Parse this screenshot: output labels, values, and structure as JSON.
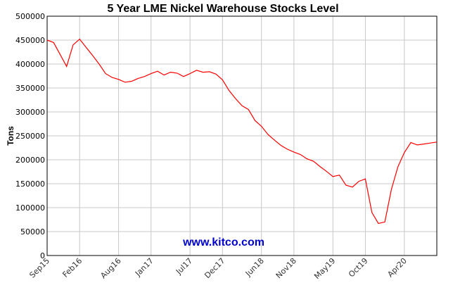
{
  "chart_data": {
    "type": "line",
    "title": "5 Year LME Nickel Warehouse Stocks Level",
    "ylabel": "Tons",
    "xlabel": "",
    "ylim": [
      0,
      500000
    ],
    "y_ticks": [
      "0",
      "50000",
      "100000",
      "150000",
      "200000",
      "250000",
      "300000",
      "350000",
      "400000",
      "450000",
      "500000"
    ],
    "x_ticks": [
      "Sep15",
      "Feb16",
      "Aug16",
      "Jan17",
      "Jul17",
      "Dec17",
      "Jun18",
      "Nov18",
      "May19",
      "Oct19",
      "Apr20"
    ],
    "x_tick_months": [
      "2015-09",
      "2016-02",
      "2016-08",
      "2017-01",
      "2017-07",
      "2017-12",
      "2018-06",
      "2018-11",
      "2019-05",
      "2019-10",
      "2020-04"
    ],
    "xlim": [
      "2015-09",
      "2020-09"
    ],
    "grid": true,
    "line_color": "#ff0000",
    "series": [
      {
        "x": [
          "2015-09",
          "2015-10",
          "2015-11",
          "2015-12",
          "2016-01",
          "2016-02",
          "2016-03",
          "2016-04",
          "2016-05",
          "2016-06",
          "2016-07",
          "2016-08",
          "2016-09",
          "2016-10",
          "2016-11",
          "2016-12",
          "2017-01",
          "2017-02",
          "2017-03",
          "2017-04",
          "2017-05",
          "2017-06",
          "2017-07",
          "2017-08",
          "2017-09",
          "2017-10",
          "2017-11",
          "2017-12",
          "2018-01",
          "2018-02",
          "2018-03",
          "2018-04",
          "2018-05",
          "2018-06",
          "2018-07",
          "2018-08",
          "2018-09",
          "2018-10",
          "2018-11",
          "2018-12",
          "2019-01",
          "2019-02",
          "2019-03",
          "2019-04",
          "2019-05",
          "2019-06",
          "2019-07",
          "2019-08",
          "2019-09",
          "2019-10",
          "2019-11",
          "2019-12",
          "2020-01",
          "2020-02",
          "2020-03",
          "2020-04",
          "2020-05",
          "2020-06",
          "2020-07",
          "2020-08",
          "2020-09"
        ],
        "y": [
          450000,
          445000,
          420000,
          395000,
          440000,
          452000,
          435000,
          418000,
          400000,
          380000,
          372000,
          368000,
          362000,
          364000,
          370000,
          374000,
          380000,
          385000,
          377000,
          383000,
          381000,
          374000,
          380000,
          387000,
          383000,
          384000,
          379000,
          367000,
          345000,
          328000,
          313000,
          305000,
          282000,
          270000,
          253000,
          241000,
          230000,
          222000,
          216000,
          211000,
          202000,
          197000,
          186000,
          176000,
          165000,
          168000,
          147000,
          143000,
          155000,
          160000,
          90000,
          67000,
          70000,
          138000,
          185000,
          215000,
          236000,
          231000,
          233000,
          235000,
          237000
        ]
      }
    ]
  },
  "watermark": {
    "text": "www.kitco.com",
    "color": "#0000cc"
  }
}
